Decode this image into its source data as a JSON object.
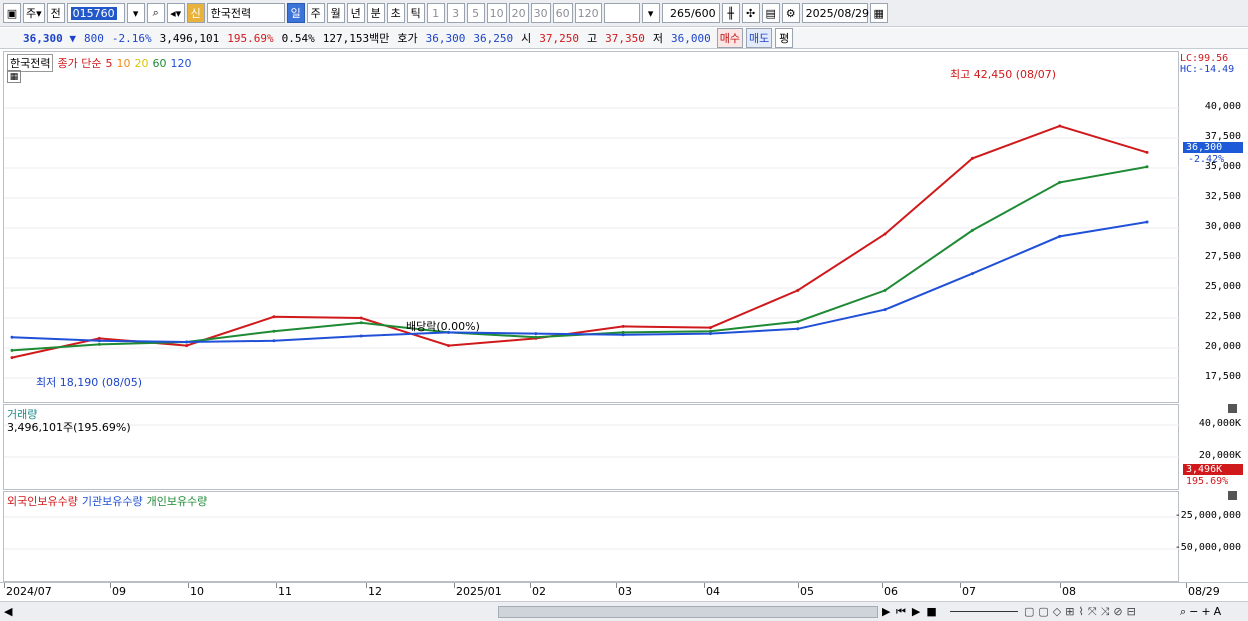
{
  "toolbar": {
    "market": "주",
    "market2": "전",
    "code": "015760",
    "stock_name": "한국전력",
    "badge": "신",
    "periods": [
      "일",
      "주",
      "월",
      "년",
      "분",
      "초",
      "틱"
    ],
    "numbers": [
      "1",
      "3",
      "5",
      "10",
      "20",
      "30",
      "60",
      "120"
    ],
    "count": "265",
    "count_max": "/600",
    "date": "2025/08/29"
  },
  "quote": {
    "price": "36,300",
    "arrow": "▼",
    "change": "800",
    "change_pct": "-2.16%",
    "volume": "3,496,101",
    "volume_ratio": "195.69%",
    "turnover": "0.54%",
    "amount": "127,153백만",
    "ask_label": "호가",
    "ask": "36,300",
    "bid": "36,250",
    "open_label": "시",
    "open": "37,250",
    "high_label": "고",
    "high": "37,350",
    "low_label": "저",
    "low": "36,000",
    "buy": "매수",
    "sell": "매도",
    "eval": "평"
  },
  "price_panel": {
    "legend_name": "한국전력",
    "legend_ma": "종가 단순",
    "ma_periods": [
      "5",
      "10",
      "20",
      "60",
      "120"
    ],
    "ma_colors": [
      "#d0191b",
      "#f08a1a",
      "#f4e51b",
      "#1e8a34",
      "#2050d8"
    ],
    "lc": "LC:99.56",
    "hc": "HC:-14.49",
    "y_ticks": [
      "40,000",
      "37,500",
      "35,000",
      "32,500",
      "30,000",
      "27,500",
      "25,000",
      "22,500",
      "20,000",
      "17,500"
    ],
    "y_values": [
      40000,
      37500,
      35000,
      32500,
      30000,
      27500,
      25000,
      22500,
      20000,
      17500
    ],
    "current_tag": "36,300",
    "current_pct": "-2.42%",
    "max_label": "최고 42,450 (08/07)",
    "min_label": "최저 18,190 (08/05)",
    "dividend": "배당락(0.00%)"
  },
  "volume_panel": {
    "title": "거래량",
    "value": "3,496,101주(195.69%)",
    "y_ticks": [
      "40,000K",
      "20,000K"
    ],
    "tag": "3,496K",
    "tag_pct": "195.69%"
  },
  "holding_panel": {
    "legend": [
      "외국인보유수량",
      "기관보유수량",
      "개인보유수량"
    ],
    "colors": [
      "#d0191b",
      "#2050d8",
      "#1e8a34"
    ],
    "y_ticks": [
      "-25,000,000",
      "-50,000,000"
    ]
  },
  "x_axis": [
    "2024/07",
    "09",
    "10",
    "11",
    "12",
    "2025/01",
    "02",
    "03",
    "04",
    "05",
    "06",
    "07",
    "08",
    "08/29"
  ],
  "chart_data": {
    "type": "line",
    "title": "한국전력",
    "x": [
      "2024/07",
      "09",
      "10",
      "11",
      "12",
      "2025/01",
      "02",
      "03",
      "04",
      "05",
      "06",
      "07",
      "08",
      "08/29"
    ],
    "series": [
      {
        "name": "종가",
        "values": [
          19200,
          20800,
          20200,
          22600,
          22500,
          20200,
          20800,
          21800,
          21700,
          24800,
          29500,
          35800,
          38500,
          36300
        ]
      },
      {
        "name": "60",
        "values": [
          19800,
          20300,
          20500,
          21400,
          22100,
          21300,
          20900,
          21300,
          21400,
          22200,
          24800,
          29800,
          33800,
          35100
        ]
      },
      {
        "name": "120",
        "values": [
          20900,
          20600,
          20500,
          20600,
          21000,
          21300,
          21200,
          21100,
          21200,
          21600,
          23200,
          26200,
          29300,
          30500
        ]
      }
    ],
    "ylim": [
      17000,
      43000
    ],
    "annotations": [
      "최고 42,450 (08/07)",
      "최저 18,190 (08/05)",
      "배당락(0.00%)"
    ]
  },
  "statusbar": {
    "controls": [
      "◀",
      "▶",
      "▐◀",
      "▶▌",
      "■",
      "+",
      "−",
      "A"
    ]
  }
}
